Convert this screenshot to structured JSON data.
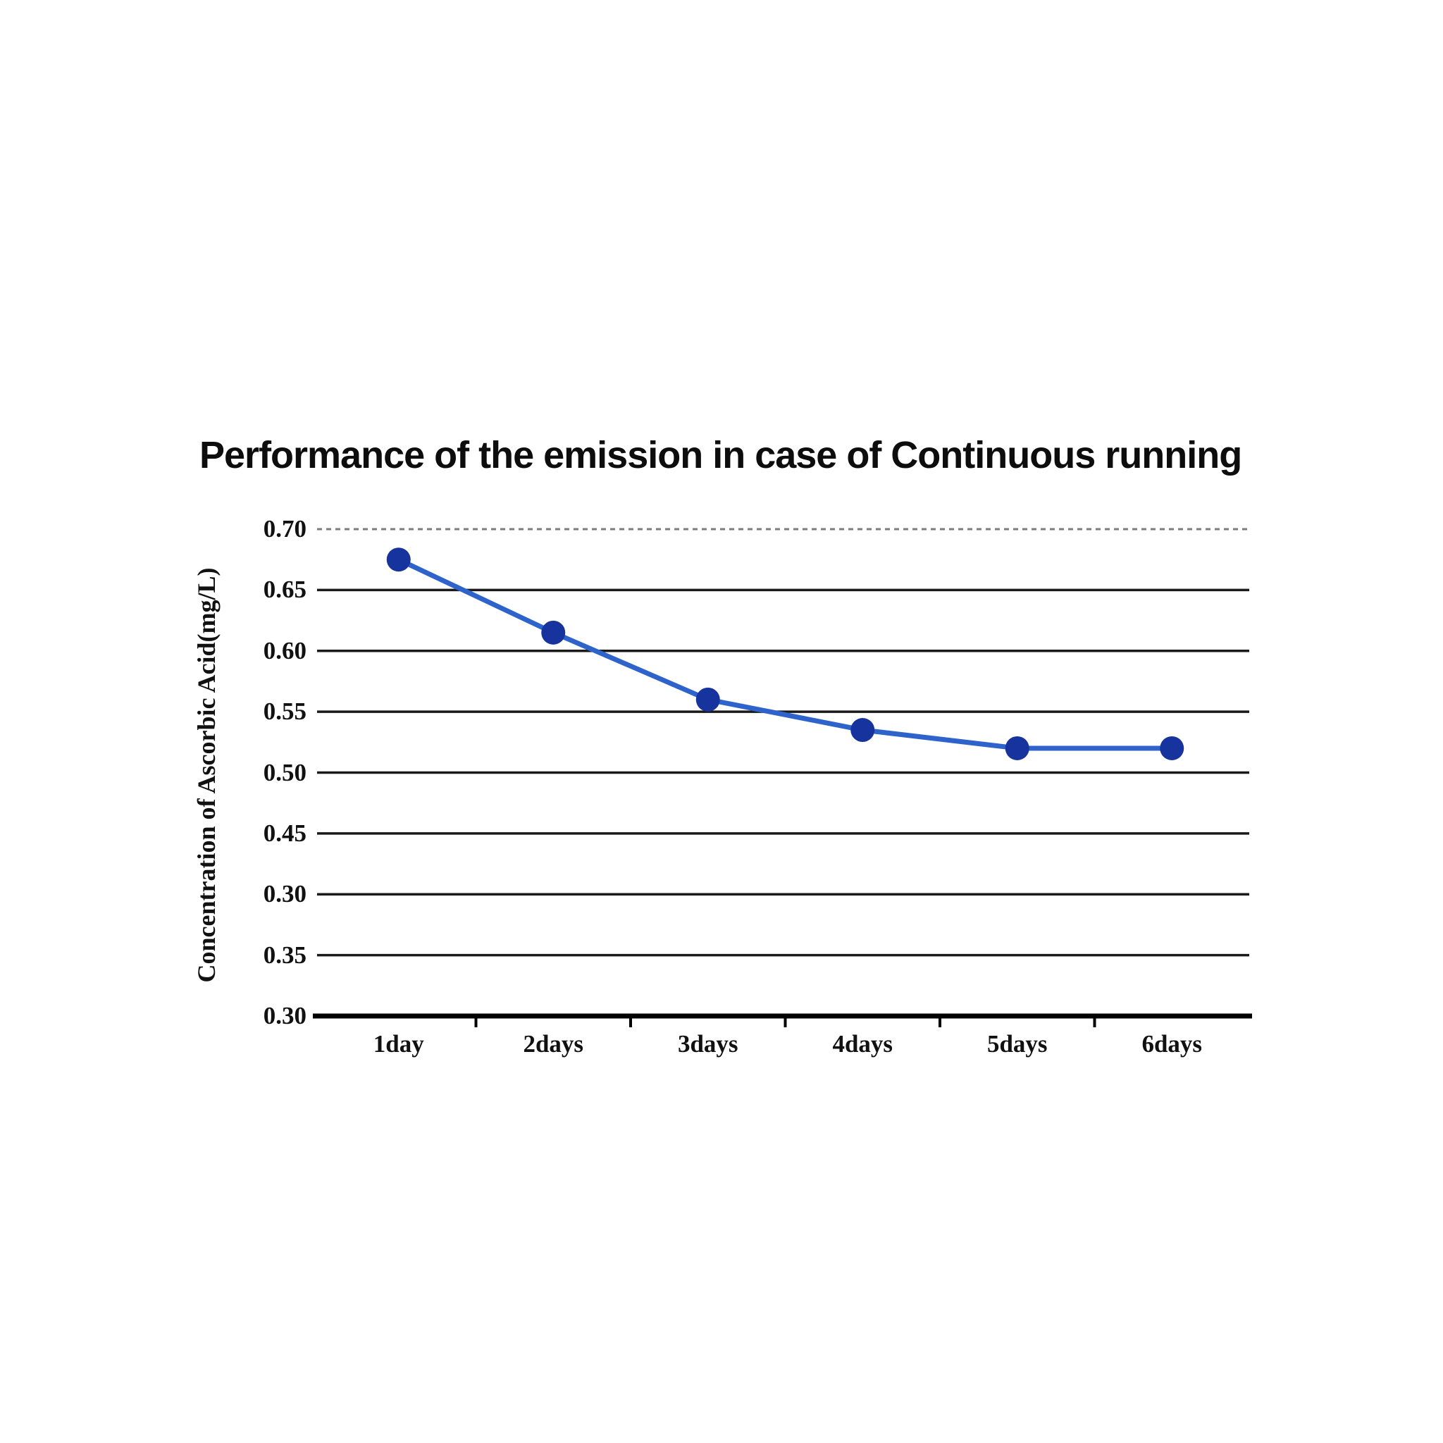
{
  "chart": {
    "title": "Performance of the emission in case of Continuous running",
    "ylabel": "Concentration of Ascorbic Acid(mg/L)"
  },
  "chart_data": {
    "type": "line",
    "title": "Performance of the emission in case of Continuous running",
    "xlabel": "",
    "ylabel": "Concentration of Ascorbic Acid(mg/L)",
    "categories": [
      "1day",
      "2days",
      "3days",
      "4days",
      "5days",
      "6days"
    ],
    "series": [
      {
        "name": "Concentration of Ascorbic Acid",
        "values": [
          0.675,
          0.615,
          0.56,
          0.535,
          0.52,
          0.52
        ]
      }
    ],
    "ylim": [
      0.3,
      0.7
    ],
    "y_ticks": [
      {
        "label": "0.70",
        "line_style": "dashed"
      },
      {
        "label": "0.65",
        "line_style": "solid"
      },
      {
        "label": "0.60",
        "line_style": "solid"
      },
      {
        "label": "0.55",
        "line_style": "solid"
      },
      {
        "label": "0.50",
        "line_style": "solid"
      },
      {
        "label": "0.45",
        "line_style": "solid"
      },
      {
        "label": "0.30",
        "line_style": "solid"
      },
      {
        "label": "0.35",
        "line_style": "solid"
      },
      {
        "label": "0.30",
        "line_style": "axis"
      }
    ],
    "grid": "horizontal",
    "legend": "none",
    "colors": {
      "line": "#2f63cc",
      "marker": "#16339e",
      "grid": "#1a1a1a",
      "dashed_grid": "#7d7d7d",
      "axis": "#000000",
      "text": "#111111"
    }
  }
}
